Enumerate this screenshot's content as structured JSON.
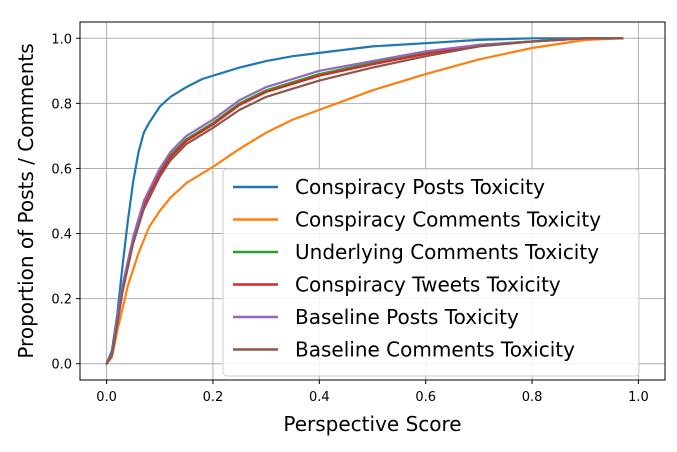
{
  "chart_data": {
    "type": "line",
    "xlabel": "Perspective Score",
    "ylabel": "Proportion of Posts / Comments",
    "xlim": [
      0.0,
      1.0
    ],
    "ylim": [
      0.0,
      1.0
    ],
    "xticks": [
      "0.0",
      "0.2",
      "0.4",
      "0.6",
      "0.8",
      "1.0"
    ],
    "yticks": [
      "0.0",
      "0.2",
      "0.4",
      "0.6",
      "0.8",
      "1.0"
    ],
    "grid": true,
    "legend_position": "lower-right",
    "series": [
      {
        "name": "Conspiracy Posts Toxicity",
        "color": "#1f77b4",
        "x": [
          0.0,
          0.01,
          0.02,
          0.03,
          0.04,
          0.05,
          0.06,
          0.07,
          0.08,
          0.1,
          0.12,
          0.15,
          0.18,
          0.2,
          0.25,
          0.3,
          0.35,
          0.4,
          0.5,
          0.6,
          0.7,
          0.8,
          0.9,
          0.97
        ],
        "y": [
          0.0,
          0.04,
          0.15,
          0.3,
          0.44,
          0.56,
          0.65,
          0.71,
          0.74,
          0.79,
          0.82,
          0.85,
          0.875,
          0.885,
          0.91,
          0.93,
          0.945,
          0.955,
          0.975,
          0.985,
          0.995,
          1.0,
          1.0,
          1.0
        ]
      },
      {
        "name": "Conspiracy Comments Toxicity",
        "color": "#ff7f0e",
        "x": [
          0.0,
          0.01,
          0.02,
          0.04,
          0.06,
          0.08,
          0.1,
          0.12,
          0.15,
          0.2,
          0.25,
          0.3,
          0.35,
          0.4,
          0.5,
          0.6,
          0.7,
          0.8,
          0.9,
          0.97
        ],
        "y": [
          0.0,
          0.02,
          0.1,
          0.24,
          0.34,
          0.42,
          0.47,
          0.51,
          0.555,
          0.605,
          0.66,
          0.71,
          0.75,
          0.78,
          0.84,
          0.89,
          0.935,
          0.97,
          0.995,
          1.0
        ]
      },
      {
        "name": "Underlying Comments Toxicity",
        "color": "#2ca02c",
        "x": [
          0.0,
          0.01,
          0.02,
          0.03,
          0.05,
          0.07,
          0.1,
          0.12,
          0.15,
          0.2,
          0.25,
          0.3,
          0.35,
          0.4,
          0.5,
          0.6,
          0.7,
          0.8,
          0.9,
          0.97
        ],
        "y": [
          0.0,
          0.03,
          0.13,
          0.23,
          0.38,
          0.49,
          0.59,
          0.64,
          0.69,
          0.74,
          0.8,
          0.84,
          0.865,
          0.89,
          0.925,
          0.955,
          0.98,
          0.99,
          1.0,
          1.0
        ]
      },
      {
        "name": "Conspiracy Tweets Toxicity",
        "color": "#d62728",
        "x": [
          0.0,
          0.01,
          0.02,
          0.03,
          0.05,
          0.07,
          0.1,
          0.12,
          0.15,
          0.2,
          0.25,
          0.3,
          0.35,
          0.4,
          0.5,
          0.6,
          0.7,
          0.8,
          0.9,
          0.97
        ],
        "y": [
          0.0,
          0.03,
          0.13,
          0.23,
          0.38,
          0.49,
          0.585,
          0.635,
          0.685,
          0.735,
          0.795,
          0.835,
          0.86,
          0.885,
          0.92,
          0.952,
          0.978,
          0.99,
          1.0,
          1.0
        ]
      },
      {
        "name": "Baseline Posts Toxicity",
        "color": "#9467bd",
        "x": [
          0.0,
          0.01,
          0.02,
          0.03,
          0.05,
          0.07,
          0.1,
          0.12,
          0.15,
          0.2,
          0.25,
          0.3,
          0.35,
          0.4,
          0.5,
          0.6,
          0.7,
          0.8,
          0.9,
          0.97
        ],
        "y": [
          0.0,
          0.03,
          0.14,
          0.24,
          0.39,
          0.5,
          0.6,
          0.65,
          0.7,
          0.75,
          0.81,
          0.85,
          0.875,
          0.9,
          0.93,
          0.96,
          0.98,
          0.99,
          1.0,
          1.0
        ]
      },
      {
        "name": "Baseline Comments Toxicity",
        "color": "#8c564b",
        "x": [
          0.0,
          0.01,
          0.02,
          0.03,
          0.05,
          0.07,
          0.1,
          0.12,
          0.15,
          0.2,
          0.25,
          0.3,
          0.35,
          0.4,
          0.5,
          0.6,
          0.7,
          0.8,
          0.9,
          0.97
        ],
        "y": [
          0.0,
          0.025,
          0.12,
          0.22,
          0.37,
          0.475,
          0.575,
          0.625,
          0.675,
          0.725,
          0.78,
          0.82,
          0.845,
          0.87,
          0.91,
          0.945,
          0.975,
          0.99,
          1.0,
          1.0
        ]
      }
    ]
  }
}
